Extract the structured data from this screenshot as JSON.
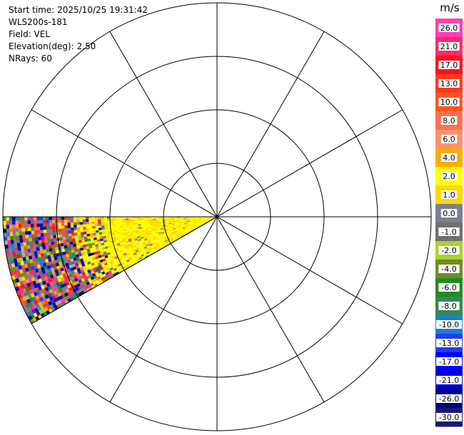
{
  "header": {
    "start_time": "Start time: 2025/10/25 19:31:42",
    "site": "WLS200s-181",
    "field": "Field: VEL",
    "elevation": "Elevation(deg): 2.50",
    "nrays": "NRays: 60"
  },
  "chart_data": {
    "type": "ppi",
    "field": "VEL",
    "units": "m/s",
    "elevation_deg": 2.5,
    "n_rays": 60,
    "range_rings": 4,
    "spokes_every_deg": 30,
    "sector_azimuth_deg": [
      240,
      270
    ],
    "near_field_values": "mostly 2.0 to 4.0 m/s with small 0.0 to 1.0 m/s patches",
    "far_field_values": "noisy, spans full scale -30.0 to 26.0 m/s",
    "colorbar": {
      "unit_label": "m/s",
      "tick_labels": [
        "26.0",
        "21.0",
        "17.0",
        "13.0",
        "10.0",
        "8.0",
        "6.0",
        "4.0",
        "2.0",
        "1.0",
        "0.0",
        "-1.0",
        "-2.0",
        "-4.0",
        "-6.0",
        "-8.0",
        "-10.0",
        "-13.0",
        "-17.0",
        "-21.0",
        "-26.0",
        "-30.0"
      ],
      "colors": [
        "#ff3cb4",
        "#ff2a6a",
        "#ff1020",
        "#ff3a20",
        "#ff5520",
        "#ff7050",
        "#ff9070",
        "#ffaa00",
        "#ffff00",
        "#ffd700",
        "#7a8090",
        "#707070",
        "#a6d42a",
        "#6b8e23",
        "#228b22",
        "#2e8b57",
        "#1e7fd0",
        "#1e3cff",
        "#0000ff",
        "#0000cd",
        "#000080",
        "#191970"
      ]
    }
  }
}
